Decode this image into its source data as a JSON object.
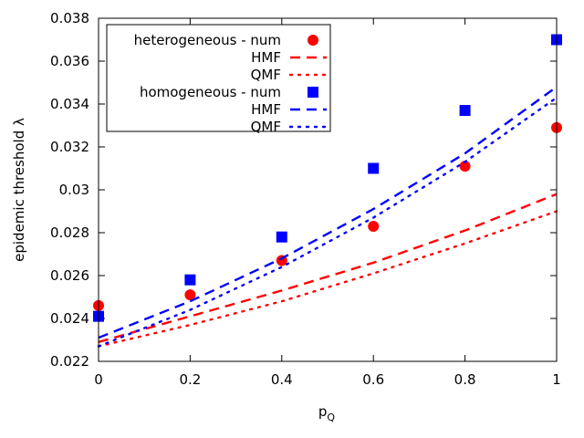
{
  "chart_data": {
    "type": "scatter",
    "title": "",
    "xlabel_main": "p",
    "xlabel_sub": "Q",
    "ylabel": "epidemic threshold λ",
    "xlim": [
      0,
      1
    ],
    "ylim": [
      0.022,
      0.038
    ],
    "xticks": [
      0,
      0.2,
      0.4,
      0.6,
      0.8,
      1
    ],
    "xtick_labels": [
      "0",
      "0.2",
      "0.4",
      "0.6",
      "0.8",
      "1"
    ],
    "yticks": [
      0.022,
      0.024,
      0.026,
      0.028,
      0.03,
      0.032,
      0.034,
      0.036,
      0.038
    ],
    "ytick_labels": [
      "0.022",
      "0.024",
      "0.026",
      "0.028",
      "0.03",
      "0.032",
      "0.034",
      "0.036",
      "0.038"
    ],
    "legend_position": "top-left",
    "series": [
      {
        "name": "heterogeneous - num",
        "kind": "points",
        "marker": "circle",
        "color": "#ff0000",
        "x": [
          0,
          0.2,
          0.4,
          0.6,
          0.8,
          1
        ],
        "y": [
          0.0246,
          0.0251,
          0.0267,
          0.0283,
          0.0311,
          0.0329
        ]
      },
      {
        "name": "HMF",
        "kind": "line",
        "dash": "dashed",
        "color": "#ff0000",
        "x": [
          0,
          0.2,
          0.4,
          0.6,
          0.8,
          1
        ],
        "y": [
          0.0229,
          0.0241,
          0.0253,
          0.0266,
          0.0281,
          0.0298
        ]
      },
      {
        "name": "QMF",
        "kind": "line",
        "dash": "dotted",
        "color": "#ff0000",
        "x": [
          0,
          0.2,
          0.4,
          0.6,
          0.8,
          1
        ],
        "y": [
          0.0227,
          0.0237,
          0.0248,
          0.0261,
          0.0275,
          0.029
        ]
      },
      {
        "name": "homogeneous - num",
        "kind": "points",
        "marker": "square",
        "color": "#0000ff",
        "x": [
          0,
          0.2,
          0.4,
          0.6,
          0.8,
          1
        ],
        "y": [
          0.0241,
          0.0258,
          0.0278,
          0.031,
          0.0337,
          0.037
        ]
      },
      {
        "name": "HMF",
        "kind": "line",
        "dash": "dashed",
        "color": "#0000ff",
        "x": [
          0,
          0.2,
          0.4,
          0.6,
          0.8,
          1
        ],
        "y": [
          0.0231,
          0.0248,
          0.0268,
          0.0291,
          0.0317,
          0.0348
        ]
      },
      {
        "name": "QMF",
        "kind": "line",
        "dash": "dotted",
        "color": "#0000ff",
        "x": [
          0,
          0.2,
          0.4,
          0.6,
          0.8,
          1
        ],
        "y": [
          0.0227,
          0.0244,
          0.0264,
          0.0287,
          0.0313,
          0.0343
        ]
      }
    ]
  }
}
